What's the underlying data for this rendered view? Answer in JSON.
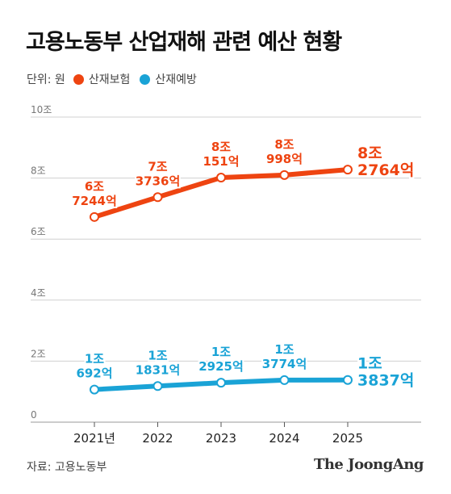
{
  "title": "고용노동부 산업재해 관련 예산 현황",
  "unit_label": "단위: 원",
  "source": "자료: 고용노동부",
  "logo_text": "The JoongAng",
  "colors": {
    "industrial_insurance": "#ee4411",
    "prevention": "#1aa3d6",
    "grid": "#d0d0d0",
    "axis_text": "#777777"
  },
  "chart_data": {
    "type": "line",
    "title": "고용노동부 산업재해 관련 예산 현황",
    "xlabel": "",
    "ylabel": "",
    "ylim": [
      0,
      10
    ],
    "grid": true,
    "legend_position": "top-left",
    "y_ticks": [
      "0",
      "2조",
      "4조",
      "6조",
      "8조",
      "10조"
    ],
    "x_ticks": [
      "2021년",
      "2022",
      "2023",
      "2024",
      "2025"
    ],
    "x": [
      2021,
      2022,
      2023,
      2024,
      2025
    ],
    "series": [
      {
        "name": "산재보험",
        "color": "#ee4411",
        "values": [
          6.7244,
          7.3736,
          8.0151,
          8.0998,
          8.2764
        ],
        "labels": [
          [
            "6조",
            "7244억"
          ],
          [
            "7조",
            "3736억"
          ],
          [
            "8조",
            "151억"
          ],
          [
            "8조",
            "998억"
          ],
          [
            "8조",
            "2764억"
          ]
        ]
      },
      {
        "name": "산재예방",
        "color": "#1aa3d6",
        "values": [
          1.0692,
          1.1831,
          1.2925,
          1.3774,
          1.3837
        ],
        "labels": [
          [
            "1조",
            "692억"
          ],
          [
            "1조",
            "1831억"
          ],
          [
            "1조",
            "2925억"
          ],
          [
            "1조",
            "3774억"
          ],
          [
            "1조",
            "3837억"
          ]
        ]
      }
    ]
  }
}
